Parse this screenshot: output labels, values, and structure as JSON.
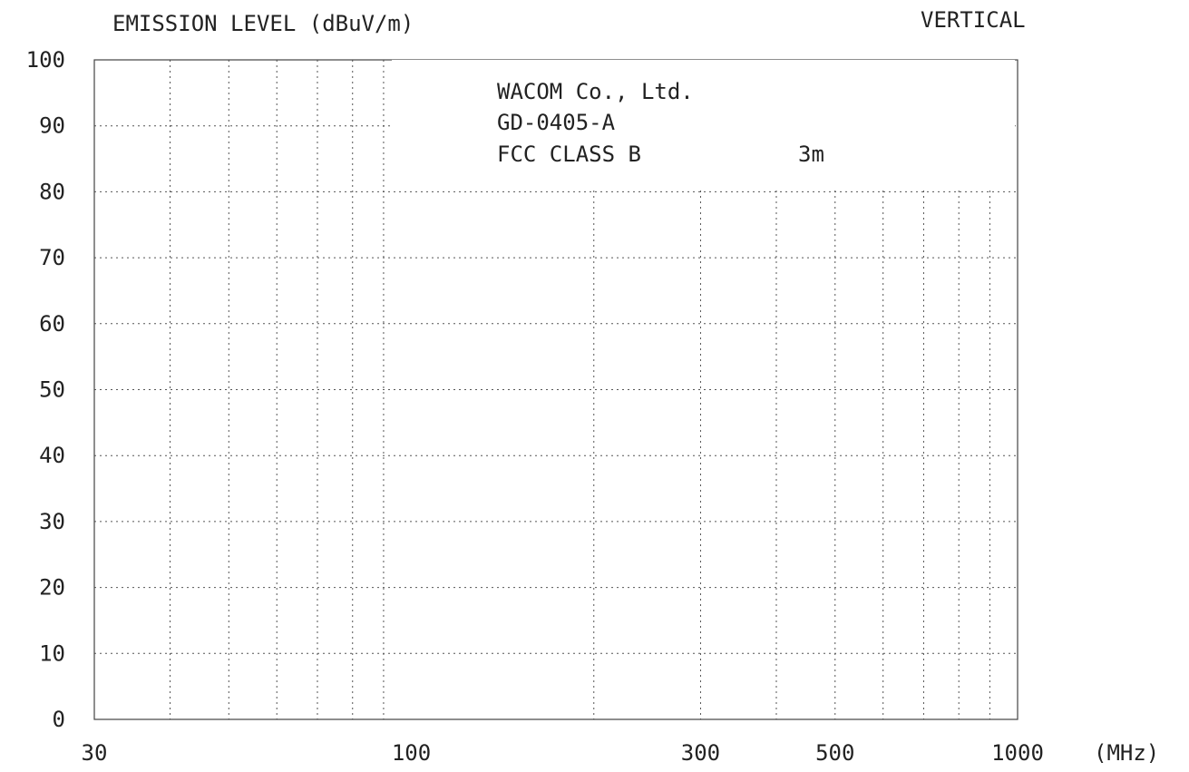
{
  "chart_data": {
    "type": "line",
    "title": "EMISSION LEVEL (dBuV/m)",
    "polarization": "VERTICAL",
    "xlabel": "(MHz)",
    "ylabel": "EMISSION LEVEL (dBuV/m)",
    "xscale": "log",
    "xlim": [
      30,
      1000
    ],
    "ylim": [
      0,
      100
    ],
    "xticks": [
      30,
      100,
      300,
      500,
      1000
    ],
    "yticks": [
      0,
      10,
      20,
      30,
      40,
      50,
      60,
      70,
      80,
      90,
      100
    ],
    "x_minor_grid": [
      40,
      50,
      60,
      70,
      80,
      90,
      200,
      300,
      400,
      500,
      600,
      700,
      800,
      900
    ],
    "grid": true,
    "annotation": {
      "line1": "WACOM Co., Ltd.",
      "line2": "GD-0405-A",
      "line3_a": "FCC CLASS B",
      "line3_b": "3m"
    },
    "series": []
  }
}
